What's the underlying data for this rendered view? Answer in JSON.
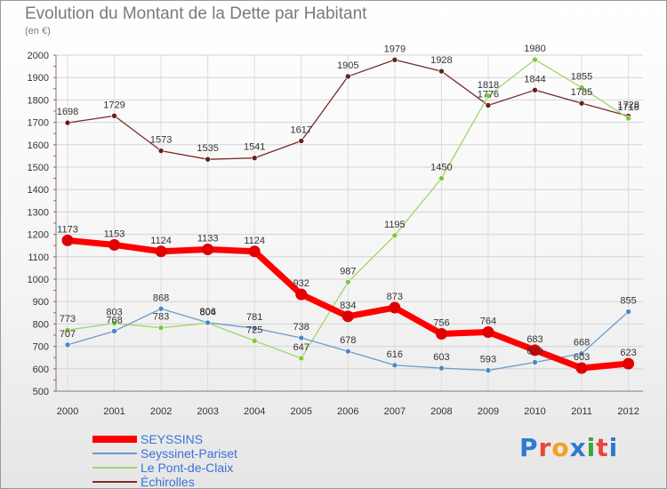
{
  "title": "Evolution du Montant de la Dette par Habitant",
  "subtitle": "(en €)",
  "logo": {
    "text": "Proxiti",
    "colors": [
      "#2f7ad0",
      "#e8473a",
      "#f0a020",
      "#2f7ad0",
      "#3aa63a",
      "#e8473a",
      "#2f7ad0"
    ]
  },
  "chart_data": {
    "type": "line",
    "categories": [
      "2000",
      "2001",
      "2002",
      "2003",
      "2004",
      "2005",
      "2006",
      "2007",
      "2008",
      "2009",
      "2010",
      "2011",
      "2012"
    ],
    "ylim": [
      500,
      2000
    ],
    "yticks": [
      500,
      600,
      700,
      800,
      900,
      1000,
      1100,
      1200,
      1300,
      1400,
      1500,
      1600,
      1700,
      1800,
      1900,
      2000
    ],
    "grid": true,
    "legend_position": "bottom-left",
    "series": [
      {
        "name": "SEYSSINS",
        "color": "#ff0000",
        "marker": "#e00000",
        "width": 7,
        "r": 6.5,
        "values": [
          1173,
          1153,
          1124,
          1133,
          1124,
          932,
          834,
          873,
          756,
          764,
          683,
          603,
          623
        ]
      },
      {
        "name": "Seyssinet-Pariset",
        "color": "#6b9ccc",
        "marker": "#4a86c8",
        "width": 1.3,
        "r": 3,
        "values": [
          707,
          768,
          868,
          806,
          781,
          738,
          678,
          616,
          603,
          593,
          629,
          668,
          855
        ]
      },
      {
        "name": "Le Pont-de-Claix",
        "color": "#9ed66a",
        "marker": "#7cc83a",
        "width": 1.3,
        "r": 3,
        "values": [
          773,
          803,
          783,
          804,
          725,
          647,
          987,
          1195,
          1450,
          1818,
          1980,
          1855,
          1718
        ]
      },
      {
        "name": "Échirolles",
        "color": "#7a2a2a",
        "marker": "#6a1e1e",
        "width": 1.3,
        "r": 3,
        "values": [
          1698,
          1729,
          1573,
          1535,
          1541,
          1617,
          1905,
          1979,
          1928,
          1776,
          1844,
          1785,
          1728
        ]
      }
    ]
  }
}
